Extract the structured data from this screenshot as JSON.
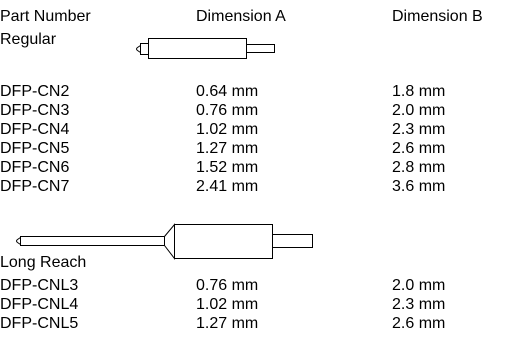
{
  "headers": {
    "part_number": "Part Number",
    "dimension_a": "Dimension A",
    "dimension_b": "Dimension B"
  },
  "sections": [
    {
      "title": "Regular",
      "tip_icon": "solder-tip-regular-icon",
      "rows": [
        {
          "part": "DFP-CN2",
          "a": "0.64 mm",
          "b": "1.8 mm"
        },
        {
          "part": "DFP-CN3",
          "a": "0.76 mm",
          "b": "2.0 mm"
        },
        {
          "part": "DFP-CN4",
          "a": "1.02 mm",
          "b": "2.3 mm"
        },
        {
          "part": "DFP-CN5",
          "a": "1.27 mm",
          "b": "2.6 mm"
        },
        {
          "part": "DFP-CN6",
          "a": "1.52 mm",
          "b": "2.8 mm"
        },
        {
          "part": "DFP-CN7",
          "a": "2.41 mm",
          "b": "3.6 mm"
        }
      ]
    },
    {
      "title": "Long Reach",
      "tip_icon": "solder-tip-long-reach-icon",
      "rows": [
        {
          "part": "DFP-CNL3",
          "a": "0.76 mm",
          "b": "2.0 mm"
        },
        {
          "part": "DFP-CNL4",
          "a": "1.02 mm",
          "b": "2.3 mm"
        },
        {
          "part": "DFP-CNL5",
          "a": "1.27 mm",
          "b": "2.6 mm"
        }
      ]
    }
  ]
}
